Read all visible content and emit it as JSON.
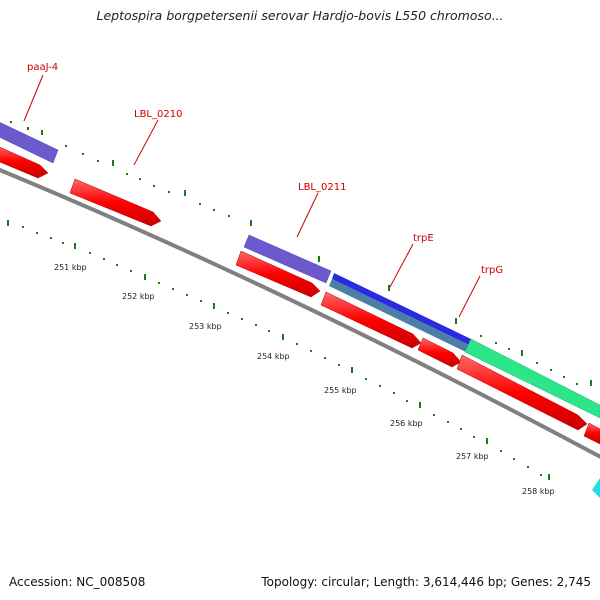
{
  "title": "Leptospira borgpetersenii serovar Hardjo-bovis L550 chromoso...",
  "footer": {
    "accession": "Accession: NC_008508",
    "summary": "Topology: circular; Length: 3,614,446 bp; Genes: 2,745"
  },
  "gene_labels": [
    {
      "id": "paaJ",
      "text": "paaJ-4"
    },
    {
      "id": "lbl0210",
      "text": "LBL_0210"
    },
    {
      "id": "lbl0211",
      "text": "LBL_0211"
    },
    {
      "id": "trpE",
      "text": "trpE"
    },
    {
      "id": "trpG",
      "text": "trpG"
    }
  ],
  "ticks": [
    "251 kbp",
    "252 kbp",
    "253 kbp",
    "254 kbp",
    "255 kbp",
    "256 kbp",
    "257 kbp",
    "258 kbp"
  ],
  "colors": {
    "backbone": "#808080",
    "gene": "#ff0000",
    "cds_purple": "#6a5acd",
    "cds_blue": "#2a2ae0",
    "cds_teal": "#4a7fa8",
    "cds_green": "#2ee68a",
    "cds_cyan": "#22dde8",
    "tick": "#1a7a1a",
    "label": "#cc0000"
  }
}
